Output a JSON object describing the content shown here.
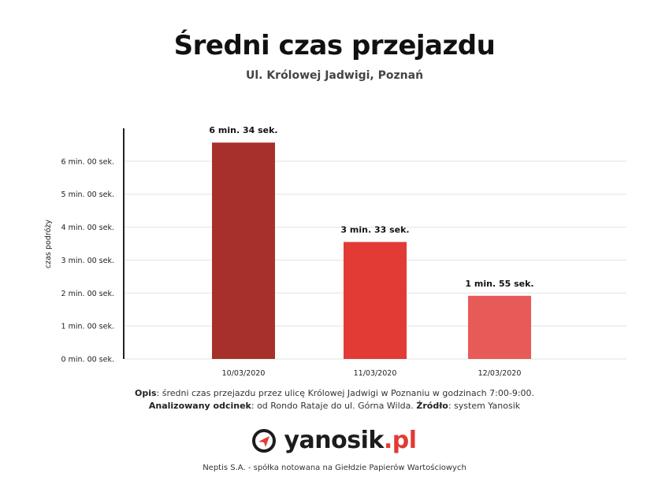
{
  "header": {
    "title": "Średni czas przejazdu",
    "subtitle": "Ul. Królowej Jadwigi, Poznań"
  },
  "chart_data": {
    "type": "bar",
    "title": "Średni czas przejazdu",
    "subtitle": "Ul. Królowej Jadwigi, Poznań",
    "ylabel": "czas podróży",
    "xlabel": "",
    "categories": [
      "10/03/2020",
      "11/03/2020",
      "12/03/2020"
    ],
    "values_seconds": [
      394,
      213,
      115
    ],
    "data_labels": [
      "6 min. 34 sek.",
      "3 min. 33 sek.",
      "1 min. 55 sek."
    ],
    "bar_colors": [
      "#a8302b",
      "#e23a35",
      "#e85a57"
    ],
    "ylim_seconds": [
      0,
      420
    ],
    "yticks_seconds": [
      0,
      60,
      120,
      180,
      240,
      300,
      360
    ],
    "ytick_labels": [
      "0 min. 00 sek.",
      "1 min. 00 sek.",
      "2 min. 00 sek.",
      "3 min. 00 sek.",
      "4 min. 00 sek.",
      "5 min. 00 sek.",
      "6 min. 00 sek."
    ],
    "grid": true,
    "legend": "none"
  },
  "notes": {
    "line1_key": "Opis",
    "line1_text": ": średni czas przejazdu przez ulicę Królowej Jadwigi w Poznaniu w godzinach 7:00-9:00.",
    "line2_key": "Analizowany odcinek",
    "line2_text": ": od Rondo Rataje do ul. Górna Wilda. ",
    "line2_key2": "Źródło",
    "line2_text2": ": system Yanosik"
  },
  "logo": {
    "name": "yanosik",
    "ext": ".pl",
    "icon": "yanosik-logo-icon"
  },
  "footer": {
    "text": "Neptis S.A. - spółka notowana na Giełdzie Papierów Wartościowych"
  },
  "colors": {
    "brand_red": "#e23a35",
    "dark_red": "#a8302b",
    "light_red": "#e85a57"
  }
}
